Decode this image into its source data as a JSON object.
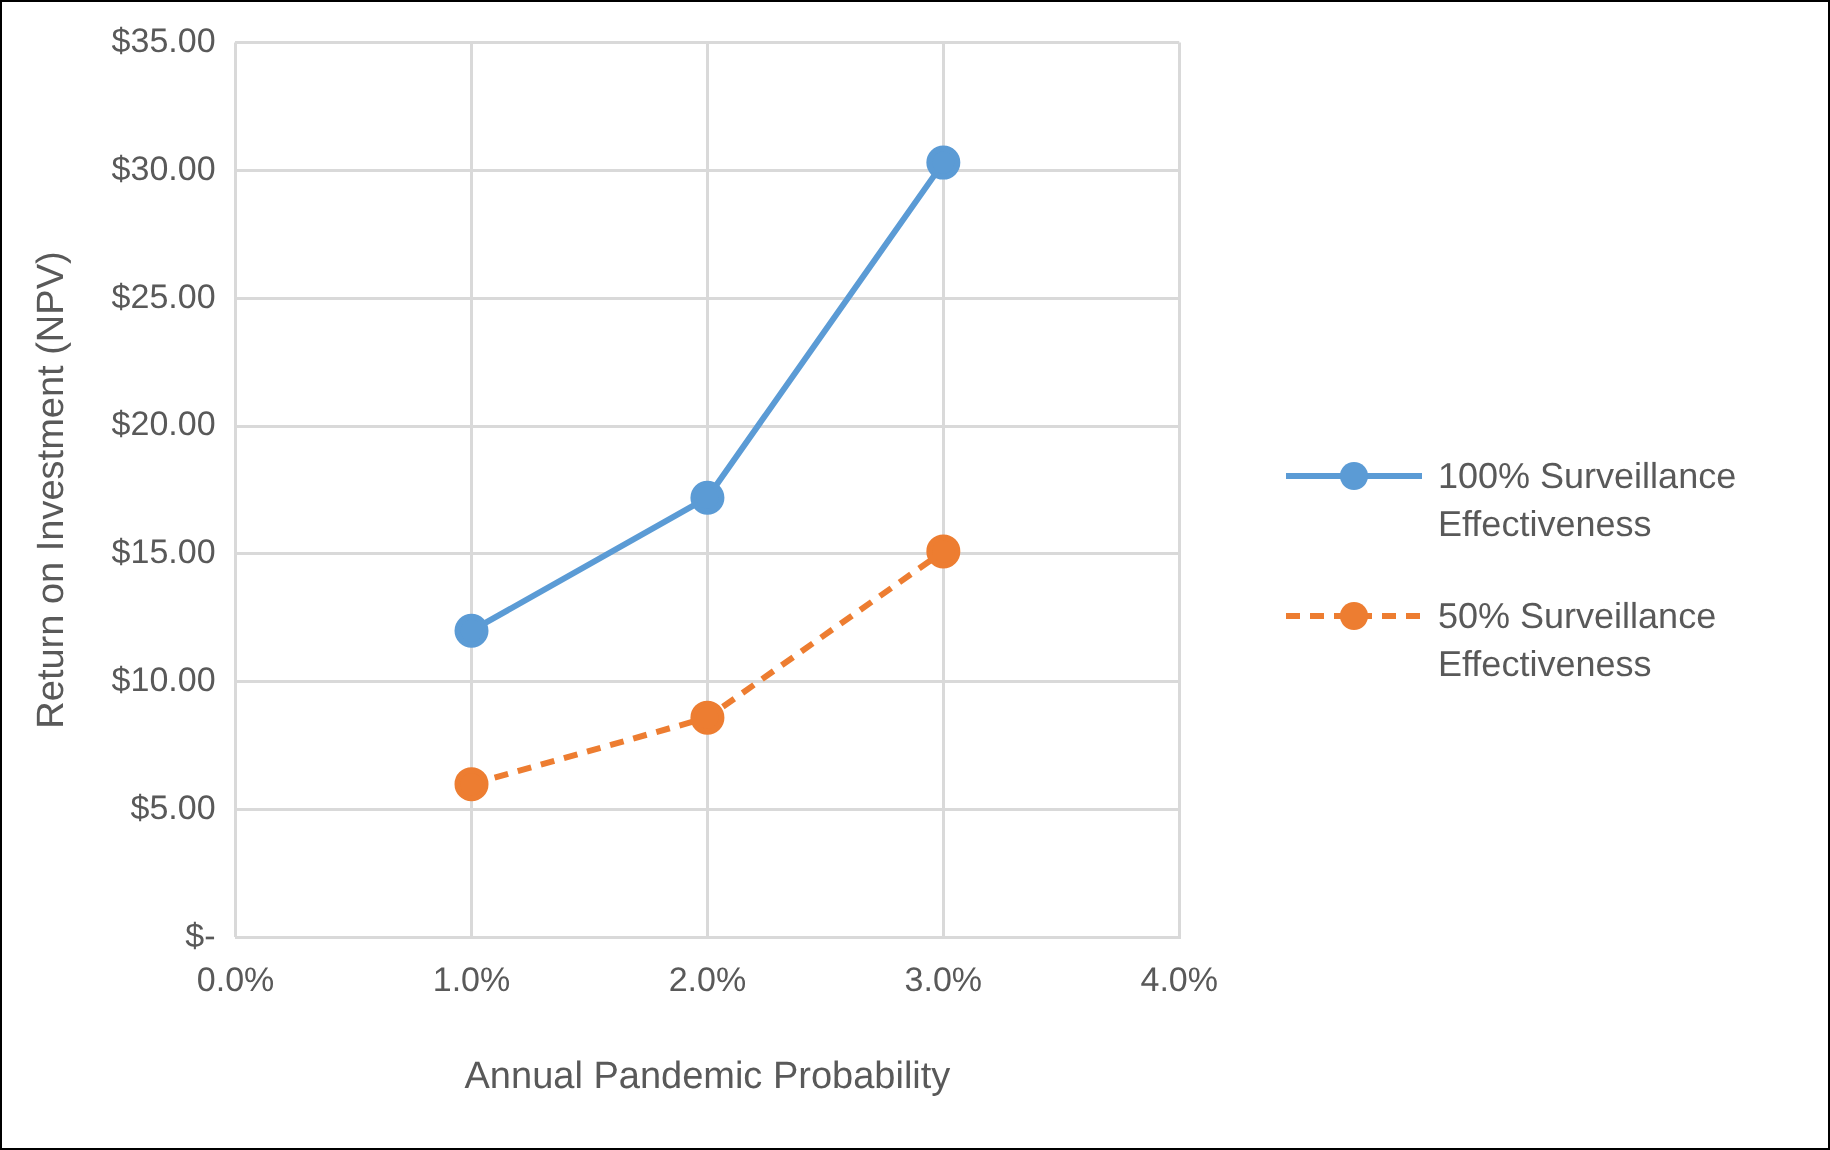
{
  "chart_data": {
    "type": "line",
    "xlabel": "Annual Pandemic Probability",
    "ylabel": "Return on Investment (NPV)",
    "x": [
      1,
      2,
      3
    ],
    "series": [
      {
        "name": "100% Surveillance Effectiveness",
        "color": "#5b9bd5",
        "values": [
          12.0,
          17.2,
          30.3
        ],
        "line_style": "solid"
      },
      {
        "name": "50% Surveillance Effectiveness",
        "color": "#ed7d31",
        "values": [
          6.0,
          8.6,
          15.1
        ],
        "line_style": "dashed"
      }
    ],
    "xlim": [
      0,
      4
    ],
    "xticks": [
      {
        "value": 0,
        "label": "0.0%"
      },
      {
        "value": 1,
        "label": "1.0%"
      },
      {
        "value": 2,
        "label": "2.0%"
      },
      {
        "value": 3,
        "label": "3.0%"
      },
      {
        "value": 4,
        "label": "4.0%"
      }
    ],
    "ylim": [
      0,
      35
    ],
    "yticks": [
      {
        "value": 0,
        "label": "$-"
      },
      {
        "value": 5,
        "label": "$5.00"
      },
      {
        "value": 10,
        "label": "$10.00"
      },
      {
        "value": 15,
        "label": "$15.00"
      },
      {
        "value": 20,
        "label": "$20.00"
      },
      {
        "value": 25,
        "label": "$25.00"
      },
      {
        "value": 30,
        "label": "$30.00"
      },
      {
        "value": 35,
        "label": "$35.00"
      }
    ],
    "grid": true,
    "legend": "right",
    "marker": "circle"
  }
}
